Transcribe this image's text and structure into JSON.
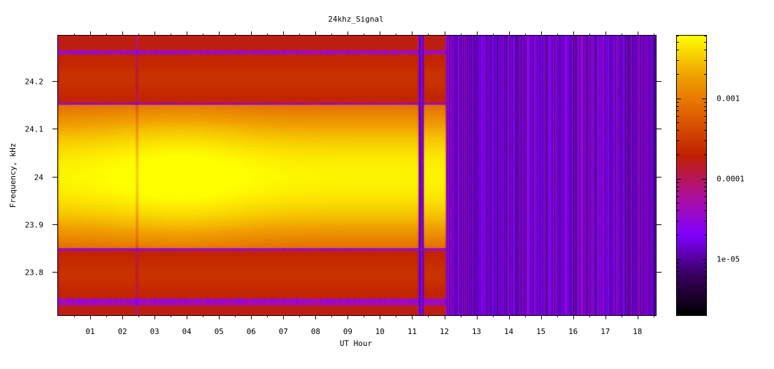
{
  "chart_data": {
    "type": "heatmap",
    "title": "24khz_Signal",
    "xlabel": "UT Hour",
    "ylabel": "Frequency, kHz",
    "xlim": [
      0,
      18.57
    ],
    "ylim": [
      23.71,
      24.295
    ],
    "x_ticks": [
      {
        "value": 1,
        "label": "01"
      },
      {
        "value": 2,
        "label": "02"
      },
      {
        "value": 3,
        "label": "03"
      },
      {
        "value": 4,
        "label": "04"
      },
      {
        "value": 5,
        "label": "05"
      },
      {
        "value": 6,
        "label": "06"
      },
      {
        "value": 7,
        "label": "07"
      },
      {
        "value": 8,
        "label": "08"
      },
      {
        "value": 9,
        "label": "09"
      },
      {
        "value": 10,
        "label": "10"
      },
      {
        "value": 11,
        "label": "11"
      },
      {
        "value": 12,
        "label": "12"
      },
      {
        "value": 13,
        "label": "13"
      },
      {
        "value": 14,
        "label": "14"
      },
      {
        "value": 15,
        "label": "15"
      },
      {
        "value": 16,
        "label": "16"
      },
      {
        "value": 17,
        "label": "17"
      },
      {
        "value": 18,
        "label": "18"
      }
    ],
    "y_ticks": [
      {
        "value": 23.8,
        "label": "23.8"
      },
      {
        "value": 23.9,
        "label": "23.9"
      },
      {
        "value": 24.0,
        "label": "24"
      },
      {
        "value": 24.1,
        "label": "24.1"
      },
      {
        "value": 24.2,
        "label": "24.2"
      }
    ],
    "colorbar": {
      "scale": "log",
      "range": [
        2e-06,
        0.006
      ],
      "ticks": [
        {
          "value": 0.001,
          "label": "0.001"
        },
        {
          "value": 0.0001,
          "label": "0.0001"
        },
        {
          "value": 1e-05,
          "label": "1e-05"
        }
      ],
      "colormap": [
        "#000000",
        "#3a0060",
        "#8000ff",
        "#b0109a",
        "#c02000",
        "#e06000",
        "#f0a000",
        "#ffff00"
      ]
    },
    "signal": {
      "center_khz": 24.0,
      "main_band_khz": [
        23.85,
        24.15
      ],
      "sidebands_khz": [
        [
          23.745,
          23.845
        ],
        [
          24.155,
          24.255
        ]
      ],
      "sideband_edge_band_khz": [
        [
          23.71,
          23.73
        ],
        [
          24.265,
          24.295
        ]
      ],
      "on_intervals_ut": [
        [
          0,
          11.2
        ],
        [
          11.35,
          12.05
        ]
      ],
      "dropout_ut": 2.45,
      "peak_level": 0.005,
      "sideband_level": 0.0002,
      "background_level": 1.2e-05
    }
  }
}
